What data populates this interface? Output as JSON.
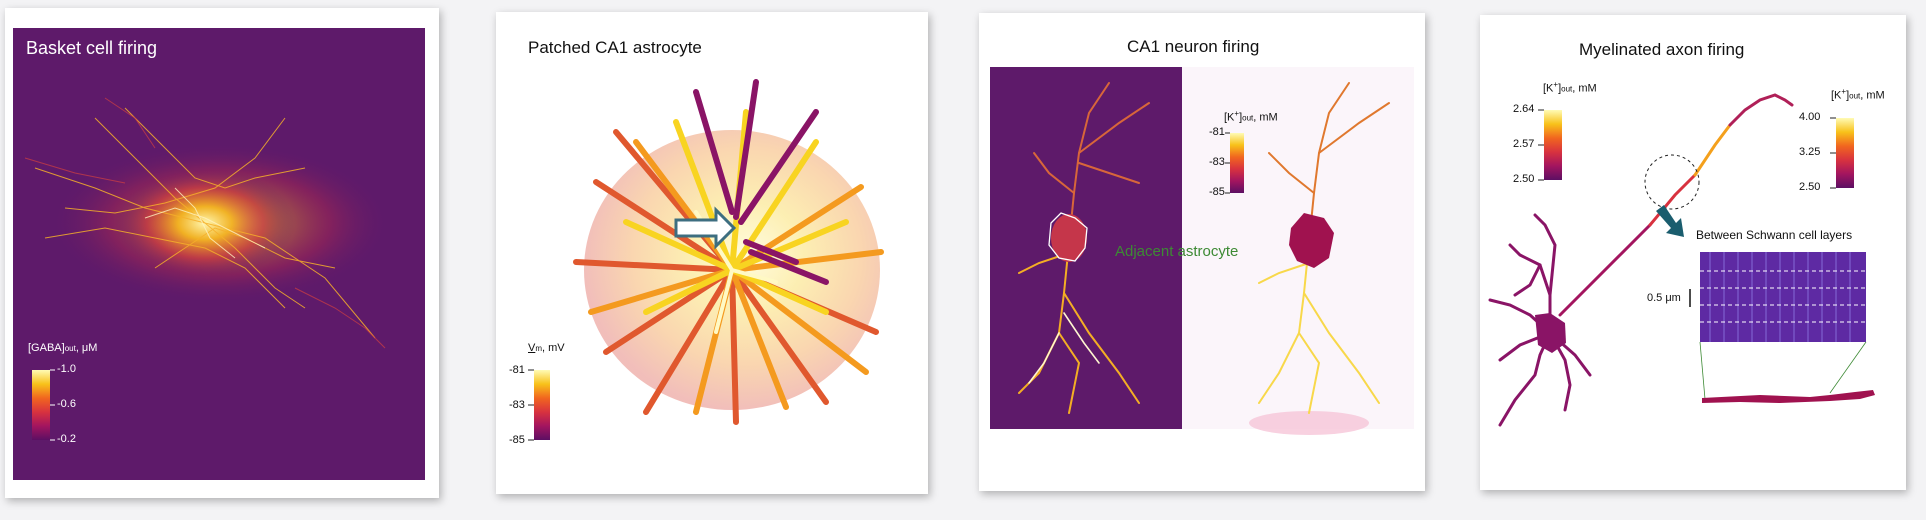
{
  "panels": [
    {
      "title": "Basket cell firing",
      "cbar": {
        "label_main": "[GABA]",
        "label_sub": "out",
        "label_unit": ", μM",
        "ticks": [
          "-1.0",
          "-0.6",
          "-0.2"
        ]
      }
    },
    {
      "title": "Patched CA1 astrocyte",
      "cbar": {
        "label_main": "V",
        "label_sub": "m",
        "label_unit": ", mV",
        "ticks": [
          "-81",
          "-83",
          "-85"
        ]
      }
    },
    {
      "title": "CA1 neuron firing",
      "cbar": {
        "label_main": "[K",
        "label_sup": "+",
        "label_close": "]",
        "label_sub": "out",
        "label_unit": ", mM",
        "ticks": [
          "-81",
          "-83",
          "-85"
        ]
      },
      "annotation": "Adjacent astrocyte"
    },
    {
      "title": "Myelinated axon firing",
      "cbar_left": {
        "label_main": "[K",
        "label_sup": "+",
        "label_close": "]",
        "label_sub": "out",
        "label_unit": ", mM",
        "ticks": [
          "2.64",
          "2.57",
          "2.50"
        ]
      },
      "cbar_right": {
        "label_main": "[K",
        "label_sup": "+",
        "label_close": "]",
        "label_sub": "out",
        "label_unit": ", mM",
        "ticks": [
          "4.00",
          "3.25",
          "2.50"
        ]
      },
      "inset_title": "Between Schwann cell layers",
      "scale_label": "0.5 μm"
    }
  ],
  "colors": {
    "background_purple": "#5e1a6a",
    "colormap": [
      "#5c0f63",
      "#a3155f",
      "#d8323f",
      "#f1661f",
      "#f8a41a",
      "#f8dd28",
      "#fff9b0"
    ]
  }
}
